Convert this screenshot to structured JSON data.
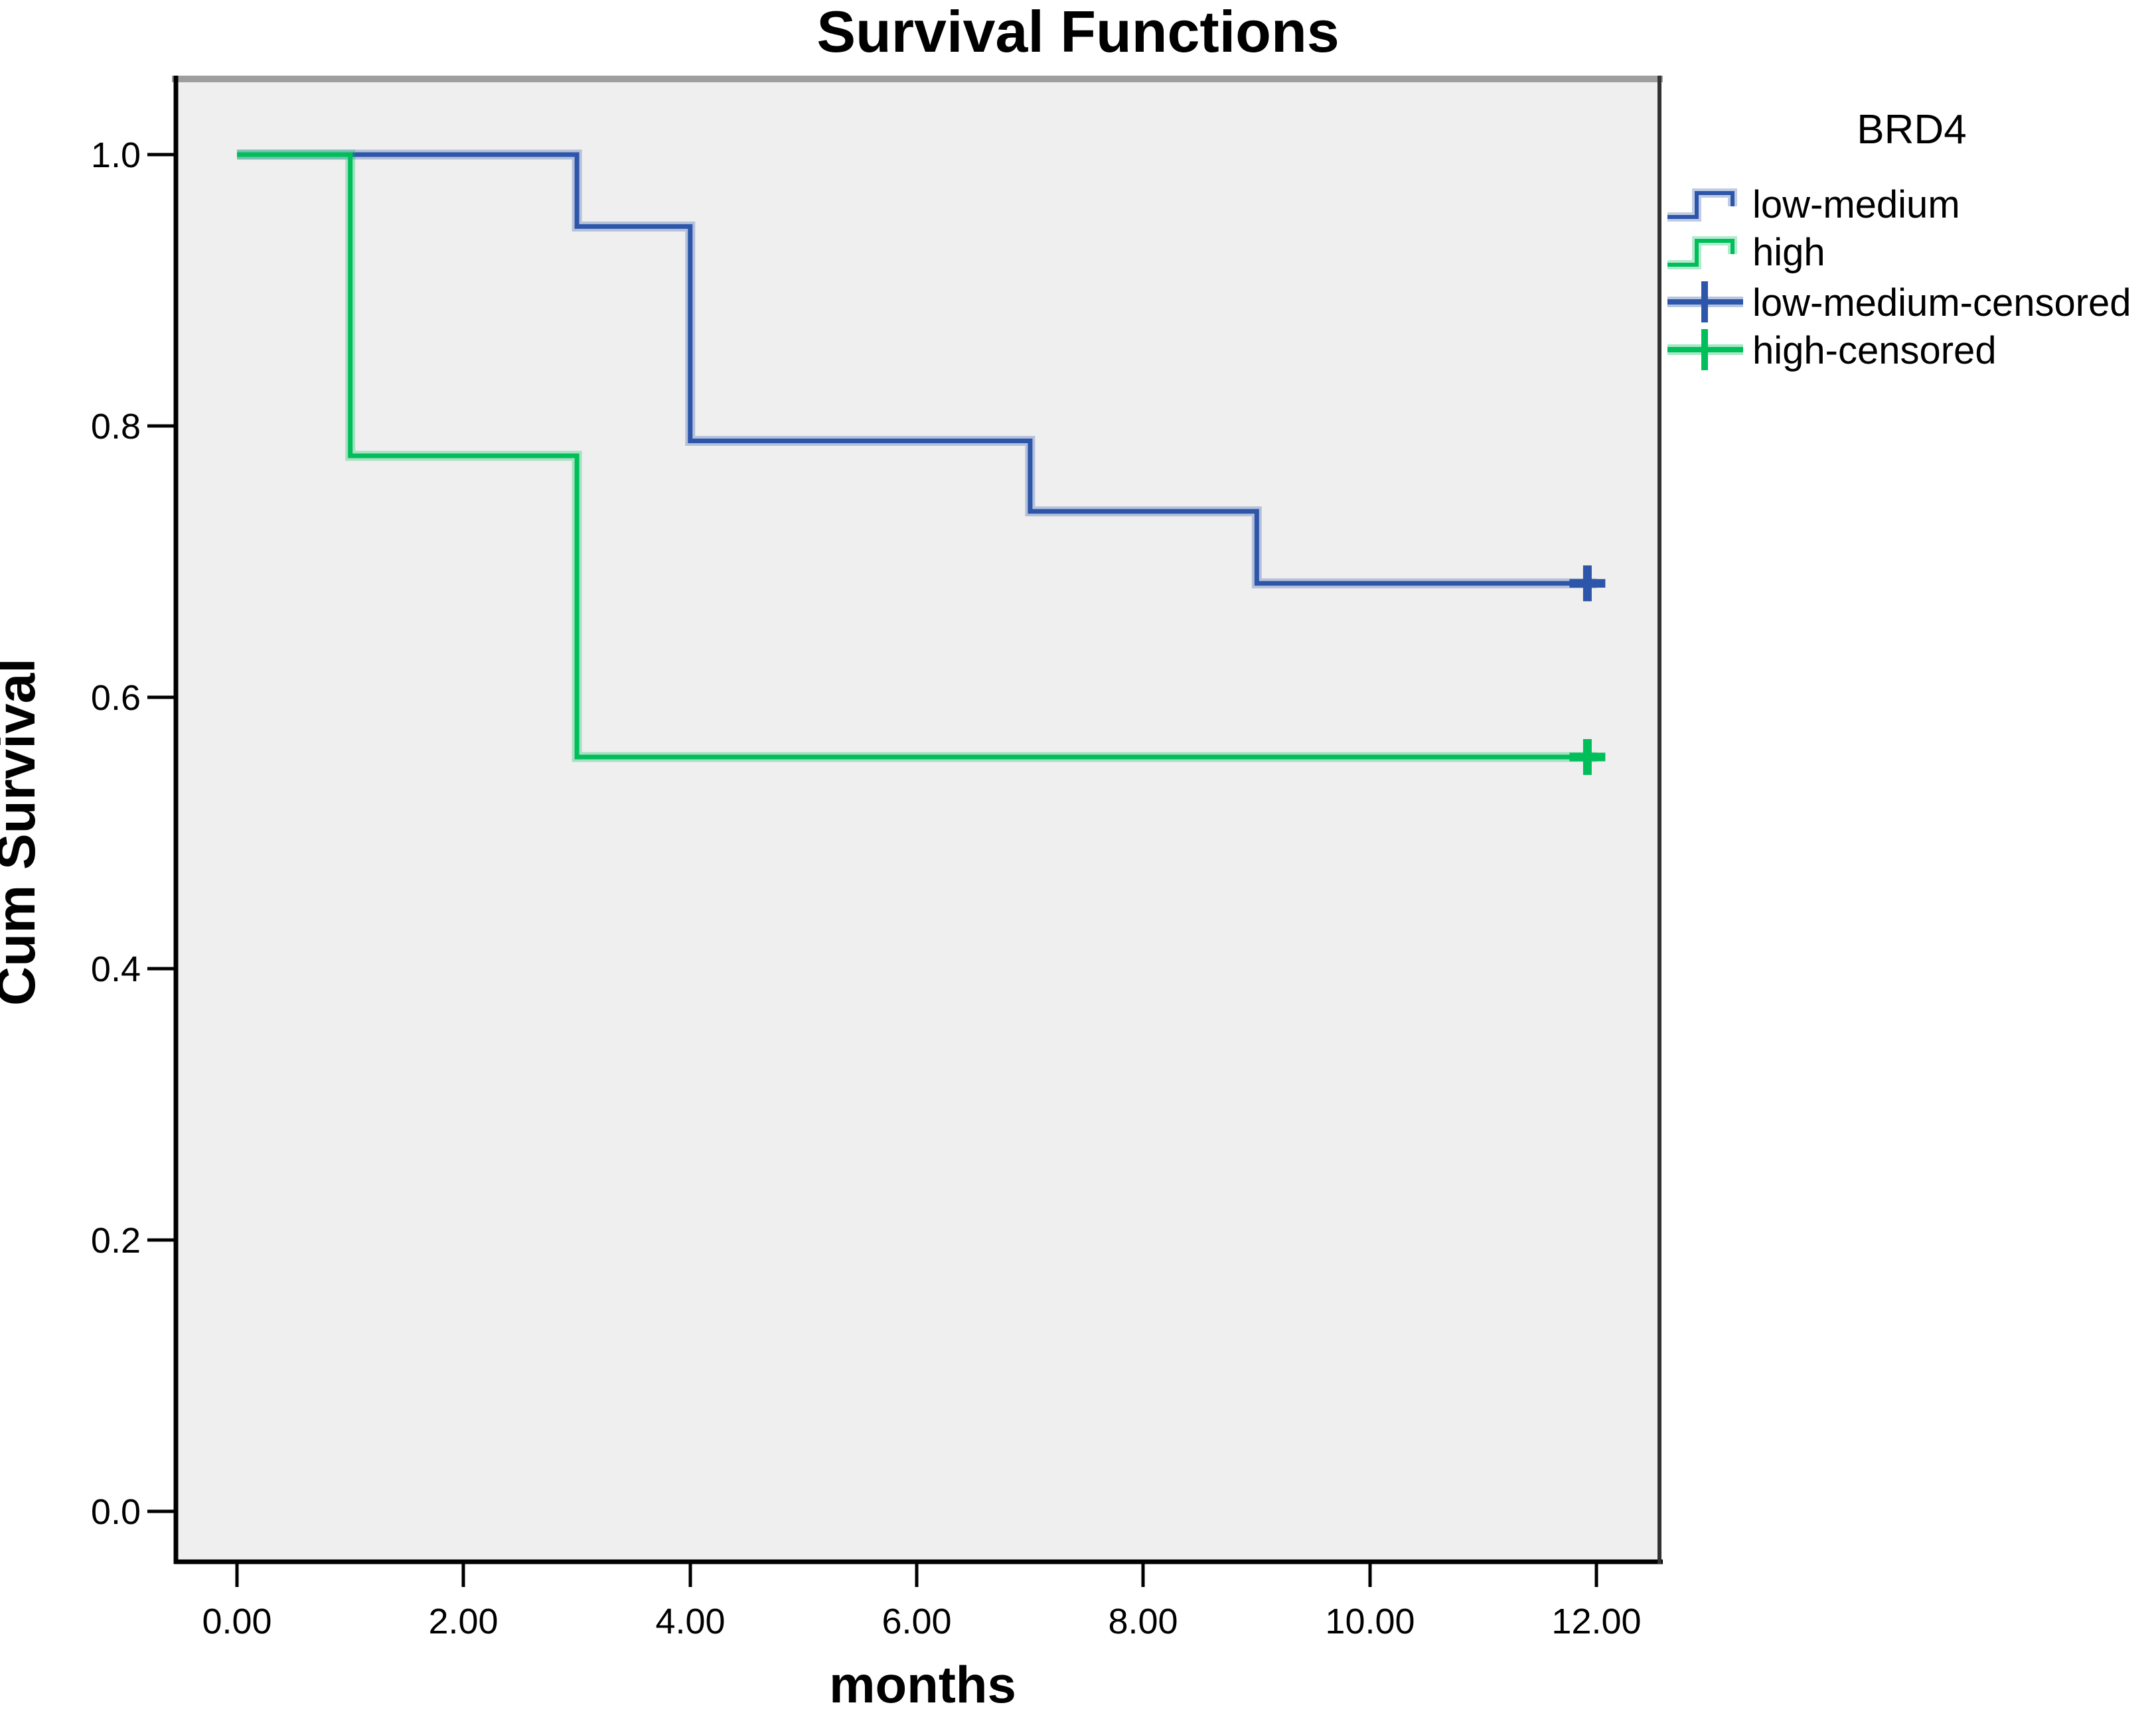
{
  "title": "Survival Functions",
  "axes": {
    "x_label": "months",
    "y_label": "Cum Survival",
    "x_ticks": [
      "0.00",
      "2.00",
      "4.00",
      "6.00",
      "8.00",
      "10.00",
      "12.00"
    ],
    "y_ticks": [
      "1.0",
      "0.8",
      "0.6",
      "0.4",
      "0.2",
      "0.0"
    ]
  },
  "legend": {
    "title": "BRD4",
    "items": [
      {
        "label": "low-medium",
        "glyph": "step-line",
        "series": 0
      },
      {
        "label": "high",
        "glyph": "step-line",
        "series": 1
      },
      {
        "label": "low-medium-censored",
        "glyph": "plus-line",
        "series": 0
      },
      {
        "label": "high-censored",
        "glyph": "plus-line",
        "series": 1
      }
    ]
  },
  "colors": {
    "low_medium_blue": "#2D55A9",
    "high_green": "#00BE5A",
    "plot_background": "#EFEFEF",
    "axis_black": "#000000",
    "top_border_gray": "#9E9E9E"
  },
  "chart_data": {
    "type": "line",
    "subtype": "kaplan-meier-step",
    "title": "Survival Functions",
    "xlabel": "months",
    "ylabel": "Cum Survival",
    "x_tick_values": [
      0,
      2,
      4,
      6,
      8,
      10,
      12
    ],
    "y_tick_values": [
      1.0,
      0.8,
      0.6,
      0.4,
      0.2,
      0.0
    ],
    "xlim": [
      -0.56,
      12.57
    ],
    "ylim": [
      -0.037,
      1.058
    ],
    "grid": false,
    "legend_position": "right-top",
    "legend_title": "BRD4",
    "series": [
      {
        "name": "low-medium",
        "color": "#2D55A9",
        "steps": [
          [
            0,
            1.0
          ],
          [
            3,
            0.947
          ],
          [
            4,
            0.789
          ],
          [
            7,
            0.737
          ],
          [
            9,
            0.684
          ]
        ],
        "end_time": 12,
        "censored": [
          [
            12,
            0.684
          ]
        ]
      },
      {
        "name": "high",
        "color": "#00BE5A",
        "steps": [
          [
            0,
            1.0
          ],
          [
            1,
            0.778
          ],
          [
            3,
            0.556
          ]
        ],
        "end_time": 12,
        "censored": [
          [
            12,
            0.556
          ]
        ]
      }
    ]
  }
}
